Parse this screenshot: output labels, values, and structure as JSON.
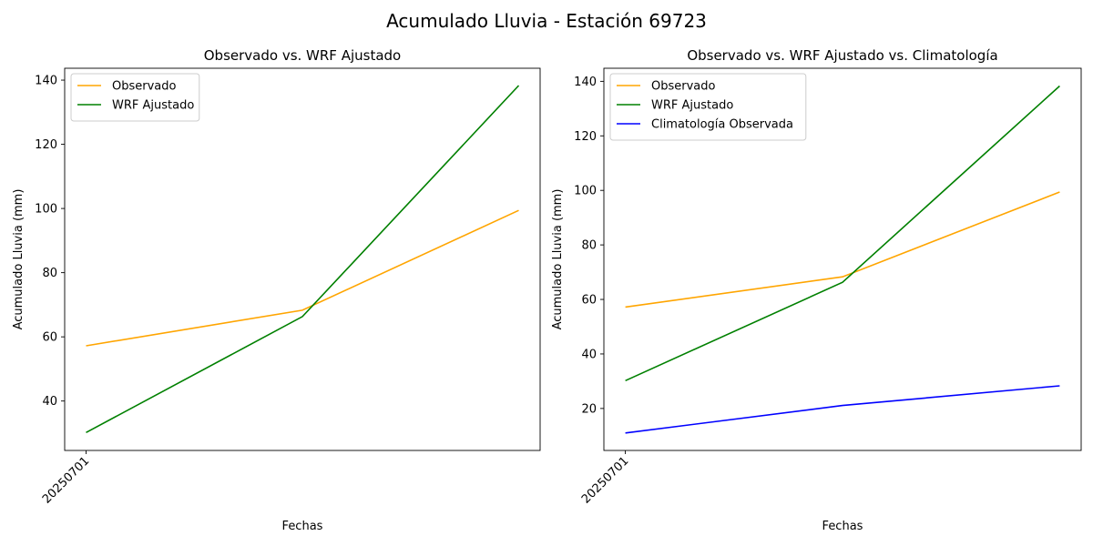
{
  "suptitle": "Acumulado Lluvia - Estación 69723",
  "chart_data": [
    {
      "type": "line",
      "title": "Observado vs. WRF Ajustado",
      "xlabel": "Fechas",
      "ylabel": "Acumulado Lluvia (mm)",
      "x_tick_labels": [
        "20250701"
      ],
      "y_ticks": [
        40,
        60,
        80,
        100,
        120,
        140
      ],
      "ylim": [
        24.6,
        143.7
      ],
      "legend_loc": "upper-left",
      "grid": false,
      "series": [
        {
          "name": "Observado",
          "color": "#ffa500",
          "values": [
            57.2,
            68.3,
            99.4
          ]
        },
        {
          "name": "WRF Ajustado",
          "color": "#008000",
          "values": [
            30.2,
            66.3,
            138.3
          ]
        }
      ]
    },
    {
      "type": "line",
      "title": "Observado vs. WRF Ajustado vs. Climatología",
      "xlabel": "Fechas",
      "ylabel": "Acumulado Lluvia (mm)",
      "x_tick_labels": [
        "20250701"
      ],
      "y_ticks": [
        20,
        40,
        60,
        80,
        100,
        120,
        140
      ],
      "ylim": [
        4.6,
        144.8
      ],
      "legend_loc": "upper-left",
      "grid": false,
      "series": [
        {
          "name": "Observado",
          "color": "#ffa500",
          "values": [
            57.2,
            68.3,
            99.4
          ]
        },
        {
          "name": "WRF Ajustado",
          "color": "#008000",
          "values": [
            30.2,
            66.3,
            138.3
          ]
        },
        {
          "name": "Climatología Observada",
          "color": "#0000ff",
          "values": [
            11.0,
            21.1,
            28.3
          ]
        }
      ]
    }
  ]
}
